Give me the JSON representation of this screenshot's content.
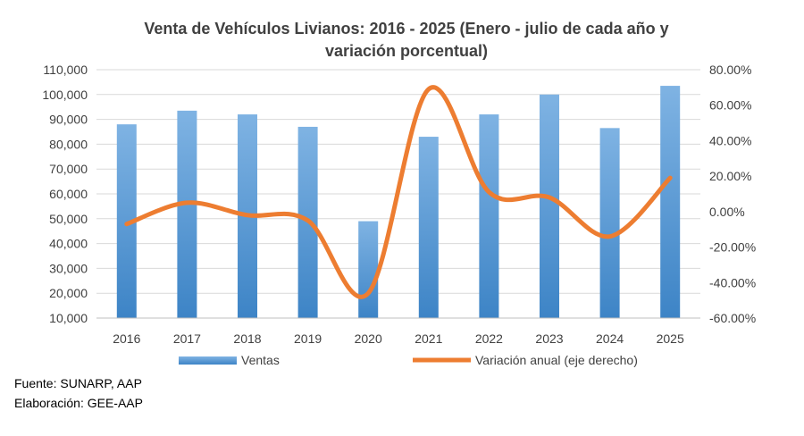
{
  "chart_data": {
    "type": "bar",
    "title_line1": "Venta de Vehículos Livianos: 2016 - 2025 (Enero - julio de cada año y",
    "title_line2": "variación porcentual)",
    "categories": [
      "2016",
      "2017",
      "2018",
      "2019",
      "2020",
      "2021",
      "2022",
      "2023",
      "2024",
      "2025"
    ],
    "series": [
      {
        "name": "Ventas",
        "type": "bar",
        "axis": "left",
        "color": "#5b9bd5",
        "values": [
          88000,
          93500,
          92000,
          87000,
          49000,
          83000,
          92000,
          100000,
          86500,
          103500
        ]
      },
      {
        "name": "Variación anual (eje derecho)",
        "type": "line",
        "axis": "right",
        "color": "#ed7d31",
        "values": [
          -7.0,
          5.0,
          -2.0,
          -5.0,
          -46.0,
          69.0,
          11.0,
          8.0,
          -14.0,
          19.0
        ]
      }
    ],
    "y_left": {
      "min": 10000,
      "max": 110000,
      "step": 10000,
      "ticks": [
        "10,000",
        "20,000",
        "30,000",
        "40,000",
        "50,000",
        "60,000",
        "70,000",
        "80,000",
        "90,000",
        "100,000",
        "110,000"
      ]
    },
    "y_right": {
      "min": -60,
      "max": 80,
      "step": 20,
      "ticks": [
        "-60.00%",
        "-40.00%",
        "-20.00%",
        "0.00%",
        "20.00%",
        "40.00%",
        "60.00%",
        "80.00%"
      ]
    },
    "grid": true,
    "legend_position": "bottom"
  },
  "source_label": "Fuente: SUNARP, AAP",
  "elaboration_label": "Elaboración: GEE-AAP"
}
